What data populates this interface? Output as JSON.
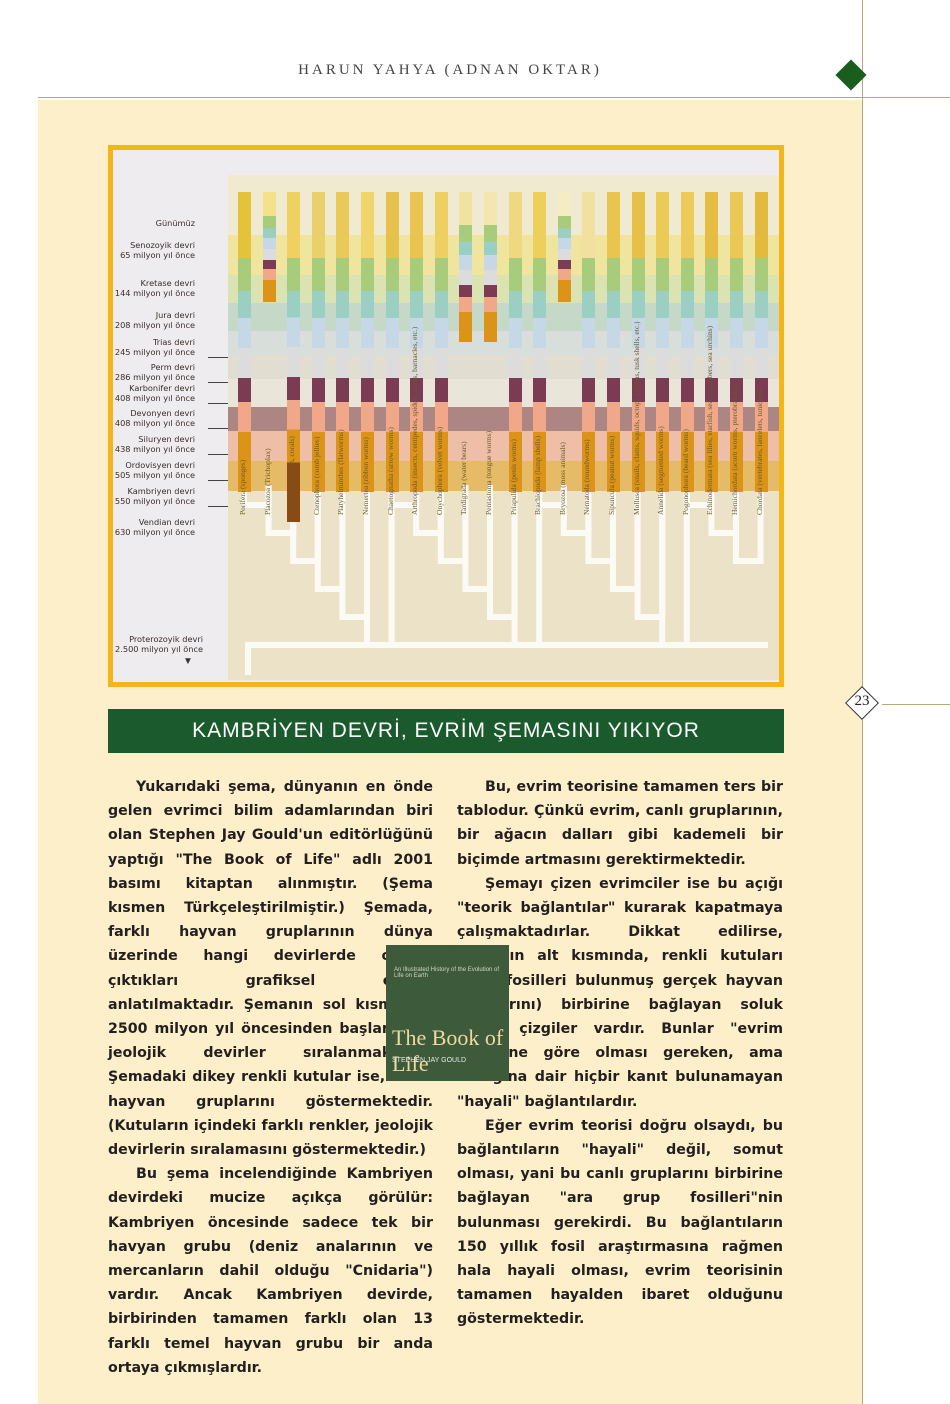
{
  "header": "HARUN YAHYA (ADNAN OKTAR)",
  "page_number": "23",
  "figure": {
    "eras": [
      {
        "name": "Günümüz",
        "age": ""
      },
      {
        "name": "Senozoyik devri",
        "age": "65 milyon yıl önce"
      },
      {
        "name": "Kretase devri",
        "age": "144 milyon yıl önce"
      },
      {
        "name": "Jura devri",
        "age": "208 milyon yıl önce"
      },
      {
        "name": "Trias devri",
        "age": "245 milyon yıl önce"
      },
      {
        "name": "Perm devri",
        "age": "286 milyon yıl önce"
      },
      {
        "name": "Karbonifer devri",
        "age": "408 milyon yıl önce"
      },
      {
        "name": "Devonyen devri",
        "age": "408 milyon yıl önce"
      },
      {
        "name": "Siluryen devri",
        "age": "438 milyon yıl önce"
      },
      {
        "name": "Ordovisyen devri",
        "age": "505 milyon yıl önce"
      },
      {
        "name": "Kambriyen devri",
        "age": "550 milyon yıl önce"
      },
      {
        "name": "Vendian devri",
        "age": "630 milyon yıl önce"
      },
      {
        "name": "Proterozoyik devri",
        "age": "2.500 milyon yıl önce"
      }
    ],
    "columns": [
      "Porifera (sponges)",
      "Placozoa (Trichoplax)",
      "Cnidaria (jellyfish, corals)",
      "Ctenophora (comb jellies)",
      "Platyhelminthes (flatworms)",
      "Nemertea (ribbon worms)",
      "Chaetognatha (arrow worms)",
      "Arthropoda (insects, centipedes, spiders, crabs, barnacles, etc.)",
      "Onychophora (velvet worms)",
      "Tardigrada (water bears)",
      "Pentastoma (tongue worms)",
      "Priapulida (penis worms)",
      "Brachiopoda (lamp shells)",
      "Bryozoa (moss animals)",
      "Nematoda (roundworms)",
      "Sipuncula (peanut worms)",
      "Mollusca (snails, clams, squids, octopi, chitons, tusk shells, etc.)",
      "Annelida (segmented worms)",
      "Pogonophora (beard worms)",
      "Echinodermata (sea lilies, starfish, sea cucumbers, sea urchins)",
      "Hemichordata (acorn worms, pterobranchs)",
      "Chordata (vertebrates, lancelets, tunicates)"
    ]
  },
  "section_title": "KAMBRİYEN DEVRİ, EVRİM ŞEMASINI YIKIYOR",
  "left_paragraphs": [
    "Yukarıdaki şema, dünyanın en önde gelen evrimci bilim adamlarından biri olan Stephen Jay Gould'un editörlüğünü yaptığı \"The Book of Life\" adlı 2001 basımı kitaptan alınmıştır. (Şema kısmen Türkçeleştirilmiştir.) Şemada, farklı hayvan gruplarının dünya üzerinde hangi devirlerde ortaya çıktıkları grafiksel olarak anlatılmaktadır. Şemanın sol kısmında, 2500 milyon yıl öncesinden başlanarak, jeolojik devirler sıralanmaktadır. Şemadaki dikey renkli kutular ise, farklı hayvan gruplarını göstermektedir. (Kutuların içindeki farklı renkler, jeolojik devirlerin sıralamasını göstermektedir.)",
    "Bu şema incelendiğinde Kambriyen devirdeki mucize açıkça görülür: Kambriyen öncesinde sadece tek bir havyan grubu (deniz analarının ve mercanların dahil olduğu \"Cnidaria\") vardır. Ancak Kambriyen devirde, birbirinden tamamen farklı olan 13 farklı temel hayvan grubu bir anda ortaya çıkmışlardır."
  ],
  "right_paragraphs": [
    "Bu, evrim teorisine tamamen ters bir tablodur. Çünkü evrim, canlı gruplarının, bir ağacın dalları gibi kademeli bir biçimde artmasını gerektirmektedir.",
    "Şemayı çizen evrimciler ise bu açığı \"teorik bağlantılar\" kurarak kapatmaya çalışmaktadırlar. Dikkat edilirse, şemanın alt kısmında, renkli kutuları (yani fosilleri bulunmuş gerçek hayvan gruplarını) birbirine bağlayan soluk renkli çizgiler vardır. Bunlar \"evrim teorisine göre olması gereken, ama varlığına dair hiçbir kanıt bulunamayan \"hayali\" bağlantılardır.",
    "Eğer evrim teorisi doğru olsaydı, bu bağlantıların \"hayali\" değil, somut olması, yani bu canlı gruplarını birbirine bağlayan \"ara grup fosilleri\"nin bulunması gerekirdi. Bu bağlantıların 150 yıllık fosil araştırmasına rağmen hala hayali olması, evrim teorisinin tamamen hayalden ibaret olduğunu göstermektedir."
  ],
  "book": {
    "subtitle": "An Illustrated History of the Evolution of Life on Earth",
    "title": "The Book of Life",
    "author": "STEPHEN JAY GOULD"
  },
  "colors": {
    "accent_green": "#1b5a2c",
    "frame_yellow": "#f2b619",
    "page_beige": "#fcefc9"
  }
}
